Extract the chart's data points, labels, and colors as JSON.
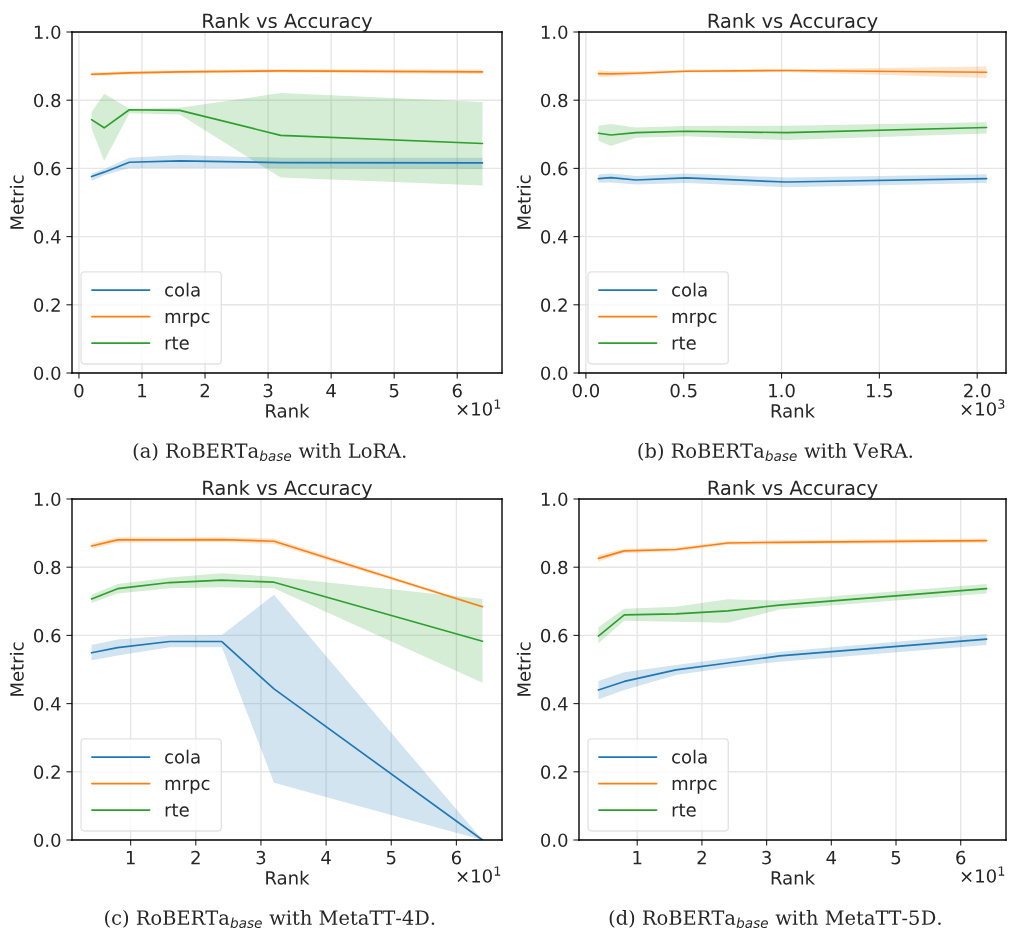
{
  "chart_data": [
    {
      "type": "line",
      "title": "Rank vs Accuracy",
      "xlabel": "Rank",
      "ylabel": "Metric",
      "x": [
        0.2,
        0.4,
        0.8,
        1.6,
        3.2,
        6.4
      ],
      "xlim": [
        -0.11,
        6.71
      ],
      "xticks": [
        0,
        1,
        2,
        3,
        4,
        5,
        6
      ],
      "ylim": [
        0,
        1
      ],
      "yticks": [
        {
          "value": 0,
          "label": "0.0"
        },
        {
          "value": 0.2,
          "label": "0.2"
        },
        {
          "value": 0.4,
          "label": "0.4"
        },
        {
          "value": 0.6,
          "label": "0.6"
        },
        {
          "value": 0.8,
          "label": "0.8"
        },
        {
          "value": 1,
          "label": "1.0"
        }
      ],
      "grid": true,
      "legend": "bottom left",
      "annotations": [
        "×10$^{1}$",
        "(a) RoBERTa$_{base}$ with LoRA."
      ],
      "series": [
        {
          "name": "cola",
          "color": "#1f77b4",
          "values": [
            0.576,
            0.589,
            0.618,
            0.622,
            0.617,
            0.616
          ],
          "lower": [
            0.563,
            0.58,
            0.601,
            0.601,
            0.601,
            0.599
          ],
          "upper": [
            0.585,
            0.598,
            0.631,
            0.639,
            0.631,
            0.631
          ]
        },
        {
          "name": "mrpc",
          "color": "#ff7f0e",
          "values": [
            0.876,
            0.877,
            0.88,
            0.883,
            0.886,
            0.883
          ],
          "lower": [
            0.871,
            0.872,
            0.875,
            0.878,
            0.881,
            0.877
          ],
          "upper": [
            0.881,
            0.882,
            0.885,
            0.888,
            0.891,
            0.889
          ]
        },
        {
          "name": "rte",
          "color": "#2ca02c",
          "values": [
            0.743,
            0.719,
            0.772,
            0.77,
            0.697,
            0.673
          ],
          "lower": [
            0.717,
            0.622,
            0.762,
            0.758,
            0.573,
            0.55
          ],
          "upper": [
            0.765,
            0.819,
            0.775,
            0.778,
            0.821,
            0.795
          ]
        }
      ]
    },
    {
      "type": "line",
      "title": "Rank vs Accuracy",
      "xlabel": "Rank",
      "ylabel": "Metric",
      "x": [
        0.064,
        0.128,
        0.256,
        0.512,
        1.024,
        2.048
      ],
      "xlim": [
        -0.0352,
        2.1472
      ],
      "xticks": [
        {
          "value": 0,
          "label": "0.0"
        },
        0.5,
        {
          "value": 1,
          "label": "1.0"
        },
        1.5,
        {
          "value": 2,
          "label": "2.0"
        }
      ],
      "ylim": [
        0,
        1
      ],
      "yticks": [
        {
          "value": 0,
          "label": "0.0"
        },
        {
          "value": 0.2,
          "label": "0.2"
        },
        {
          "value": 0.4,
          "label": "0.4"
        },
        {
          "value": 0.6,
          "label": "0.6"
        },
        {
          "value": 0.8,
          "label": "0.8"
        },
        {
          "value": 1,
          "label": "1.0"
        }
      ],
      "grid": true,
      "legend": "bottom left",
      "annotations": [
        "×10$^{3}$",
        "(b) RoBERTa$_{base}$ with VeRA."
      ],
      "series": [
        {
          "name": "cola",
          "color": "#1f77b4",
          "values": [
            0.57,
            0.573,
            0.566,
            0.572,
            0.56,
            0.57
          ],
          "lower": [
            0.558,
            0.559,
            0.553,
            0.557,
            0.545,
            0.557
          ],
          "upper": [
            0.582,
            0.585,
            0.578,
            0.585,
            0.573,
            0.583
          ]
        },
        {
          "name": "mrpc",
          "color": "#ff7f0e",
          "values": [
            0.878,
            0.877,
            0.879,
            0.885,
            0.887,
            0.882
          ],
          "lower": [
            0.868,
            0.869,
            0.873,
            0.881,
            0.883,
            0.865
          ],
          "upper": [
            0.888,
            0.885,
            0.885,
            0.889,
            0.891,
            0.899
          ]
        },
        {
          "name": "rte",
          "color": "#2ca02c",
          "values": [
            0.703,
            0.698,
            0.705,
            0.709,
            0.705,
            0.72
          ],
          "lower": [
            0.681,
            0.666,
            0.69,
            0.694,
            0.683,
            0.702
          ],
          "upper": [
            0.725,
            0.73,
            0.72,
            0.724,
            0.725,
            0.735
          ]
        }
      ]
    },
    {
      "type": "line",
      "title": "Rank vs Accuracy",
      "xlabel": "Rank",
      "ylabel": "Metric",
      "x": [
        0.4,
        0.8,
        1.6,
        2.4,
        3.2,
        6.4
      ],
      "xlim": [
        0.1,
        6.7
      ],
      "xticks": [
        1,
        2,
        3,
        4,
        5,
        6
      ],
      "ylim": [
        0,
        1
      ],
      "yticks": [
        {
          "value": 0,
          "label": "0.0"
        },
        {
          "value": 0.2,
          "label": "0.2"
        },
        {
          "value": 0.4,
          "label": "0.4"
        },
        {
          "value": 0.6,
          "label": "0.6"
        },
        {
          "value": 0.8,
          "label": "0.8"
        },
        {
          "value": 1,
          "label": "1.0"
        }
      ],
      "grid": true,
      "legend": "bottom left",
      "annotations": [
        "×10$^{1}$",
        "(c) RoBERTa$_{base}$ with MetaTT-4D."
      ],
      "series": [
        {
          "name": "cola",
          "color": "#1f77b4",
          "values": [
            0.549,
            0.564,
            0.582,
            0.582,
            0.443,
            0.0
          ],
          "lower": [
            0.527,
            0.541,
            0.565,
            0.565,
            0.168,
            0.0
          ],
          "upper": [
            0.572,
            0.588,
            0.599,
            0.601,
            0.719,
            0.0
          ]
        },
        {
          "name": "mrpc",
          "color": "#ff7f0e",
          "values": [
            0.862,
            0.88,
            0.88,
            0.881,
            0.876,
            0.684
          ],
          "lower": [
            0.854,
            0.872,
            0.873,
            0.874,
            0.868,
            0.681
          ],
          "upper": [
            0.87,
            0.888,
            0.887,
            0.888,
            0.884,
            0.687
          ]
        },
        {
          "name": "rte",
          "color": "#2ca02c",
          "values": [
            0.707,
            0.737,
            0.755,
            0.762,
            0.756,
            0.583
          ],
          "lower": [
            0.695,
            0.723,
            0.738,
            0.741,
            0.738,
            0.461
          ],
          "upper": [
            0.719,
            0.751,
            0.77,
            0.782,
            0.772,
            0.707
          ]
        }
      ]
    },
    {
      "type": "line",
      "title": "Rank vs Accuracy",
      "xlabel": "Rank",
      "ylabel": "Metric",
      "x": [
        0.4,
        0.8,
        1.6,
        2.4,
        3.2,
        6.4
      ],
      "xlim": [
        0.1,
        6.7
      ],
      "xticks": [
        1,
        2,
        3,
        4,
        5,
        6
      ],
      "ylim": [
        0,
        1
      ],
      "yticks": [
        {
          "value": 0,
          "label": "0.0"
        },
        {
          "value": 0.2,
          "label": "0.2"
        },
        {
          "value": 0.4,
          "label": "0.4"
        },
        {
          "value": 0.6,
          "label": "0.6"
        },
        {
          "value": 0.8,
          "label": "0.8"
        },
        {
          "value": 1,
          "label": "1.0"
        }
      ],
      "grid": true,
      "legend": "bottom left",
      "annotations": [
        "×10$^{1}$",
        "(d) RoBERTa$_{base}$ with MetaTT-5D."
      ],
      "series": [
        {
          "name": "cola",
          "color": "#1f77b4",
          "values": [
            0.44,
            0.465,
            0.499,
            0.519,
            0.54,
            0.589
          ],
          "lower": [
            0.413,
            0.44,
            0.484,
            0.506,
            0.523,
            0.572
          ],
          "upper": [
            0.466,
            0.492,
            0.513,
            0.533,
            0.552,
            0.604
          ]
        },
        {
          "name": "mrpc",
          "color": "#ff7f0e",
          "values": [
            0.826,
            0.848,
            0.852,
            0.871,
            0.873,
            0.878
          ],
          "lower": [
            0.816,
            0.842,
            0.846,
            0.865,
            0.867,
            0.872
          ],
          "upper": [
            0.836,
            0.854,
            0.858,
            0.877,
            0.879,
            0.884
          ]
        },
        {
          "name": "rte",
          "color": "#2ca02c",
          "values": [
            0.598,
            0.66,
            0.663,
            0.672,
            0.689,
            0.737
          ],
          "lower": [
            0.577,
            0.643,
            0.64,
            0.637,
            0.676,
            0.723
          ],
          "upper": [
            0.624,
            0.678,
            0.684,
            0.706,
            0.702,
            0.751
          ]
        }
      ]
    }
  ]
}
